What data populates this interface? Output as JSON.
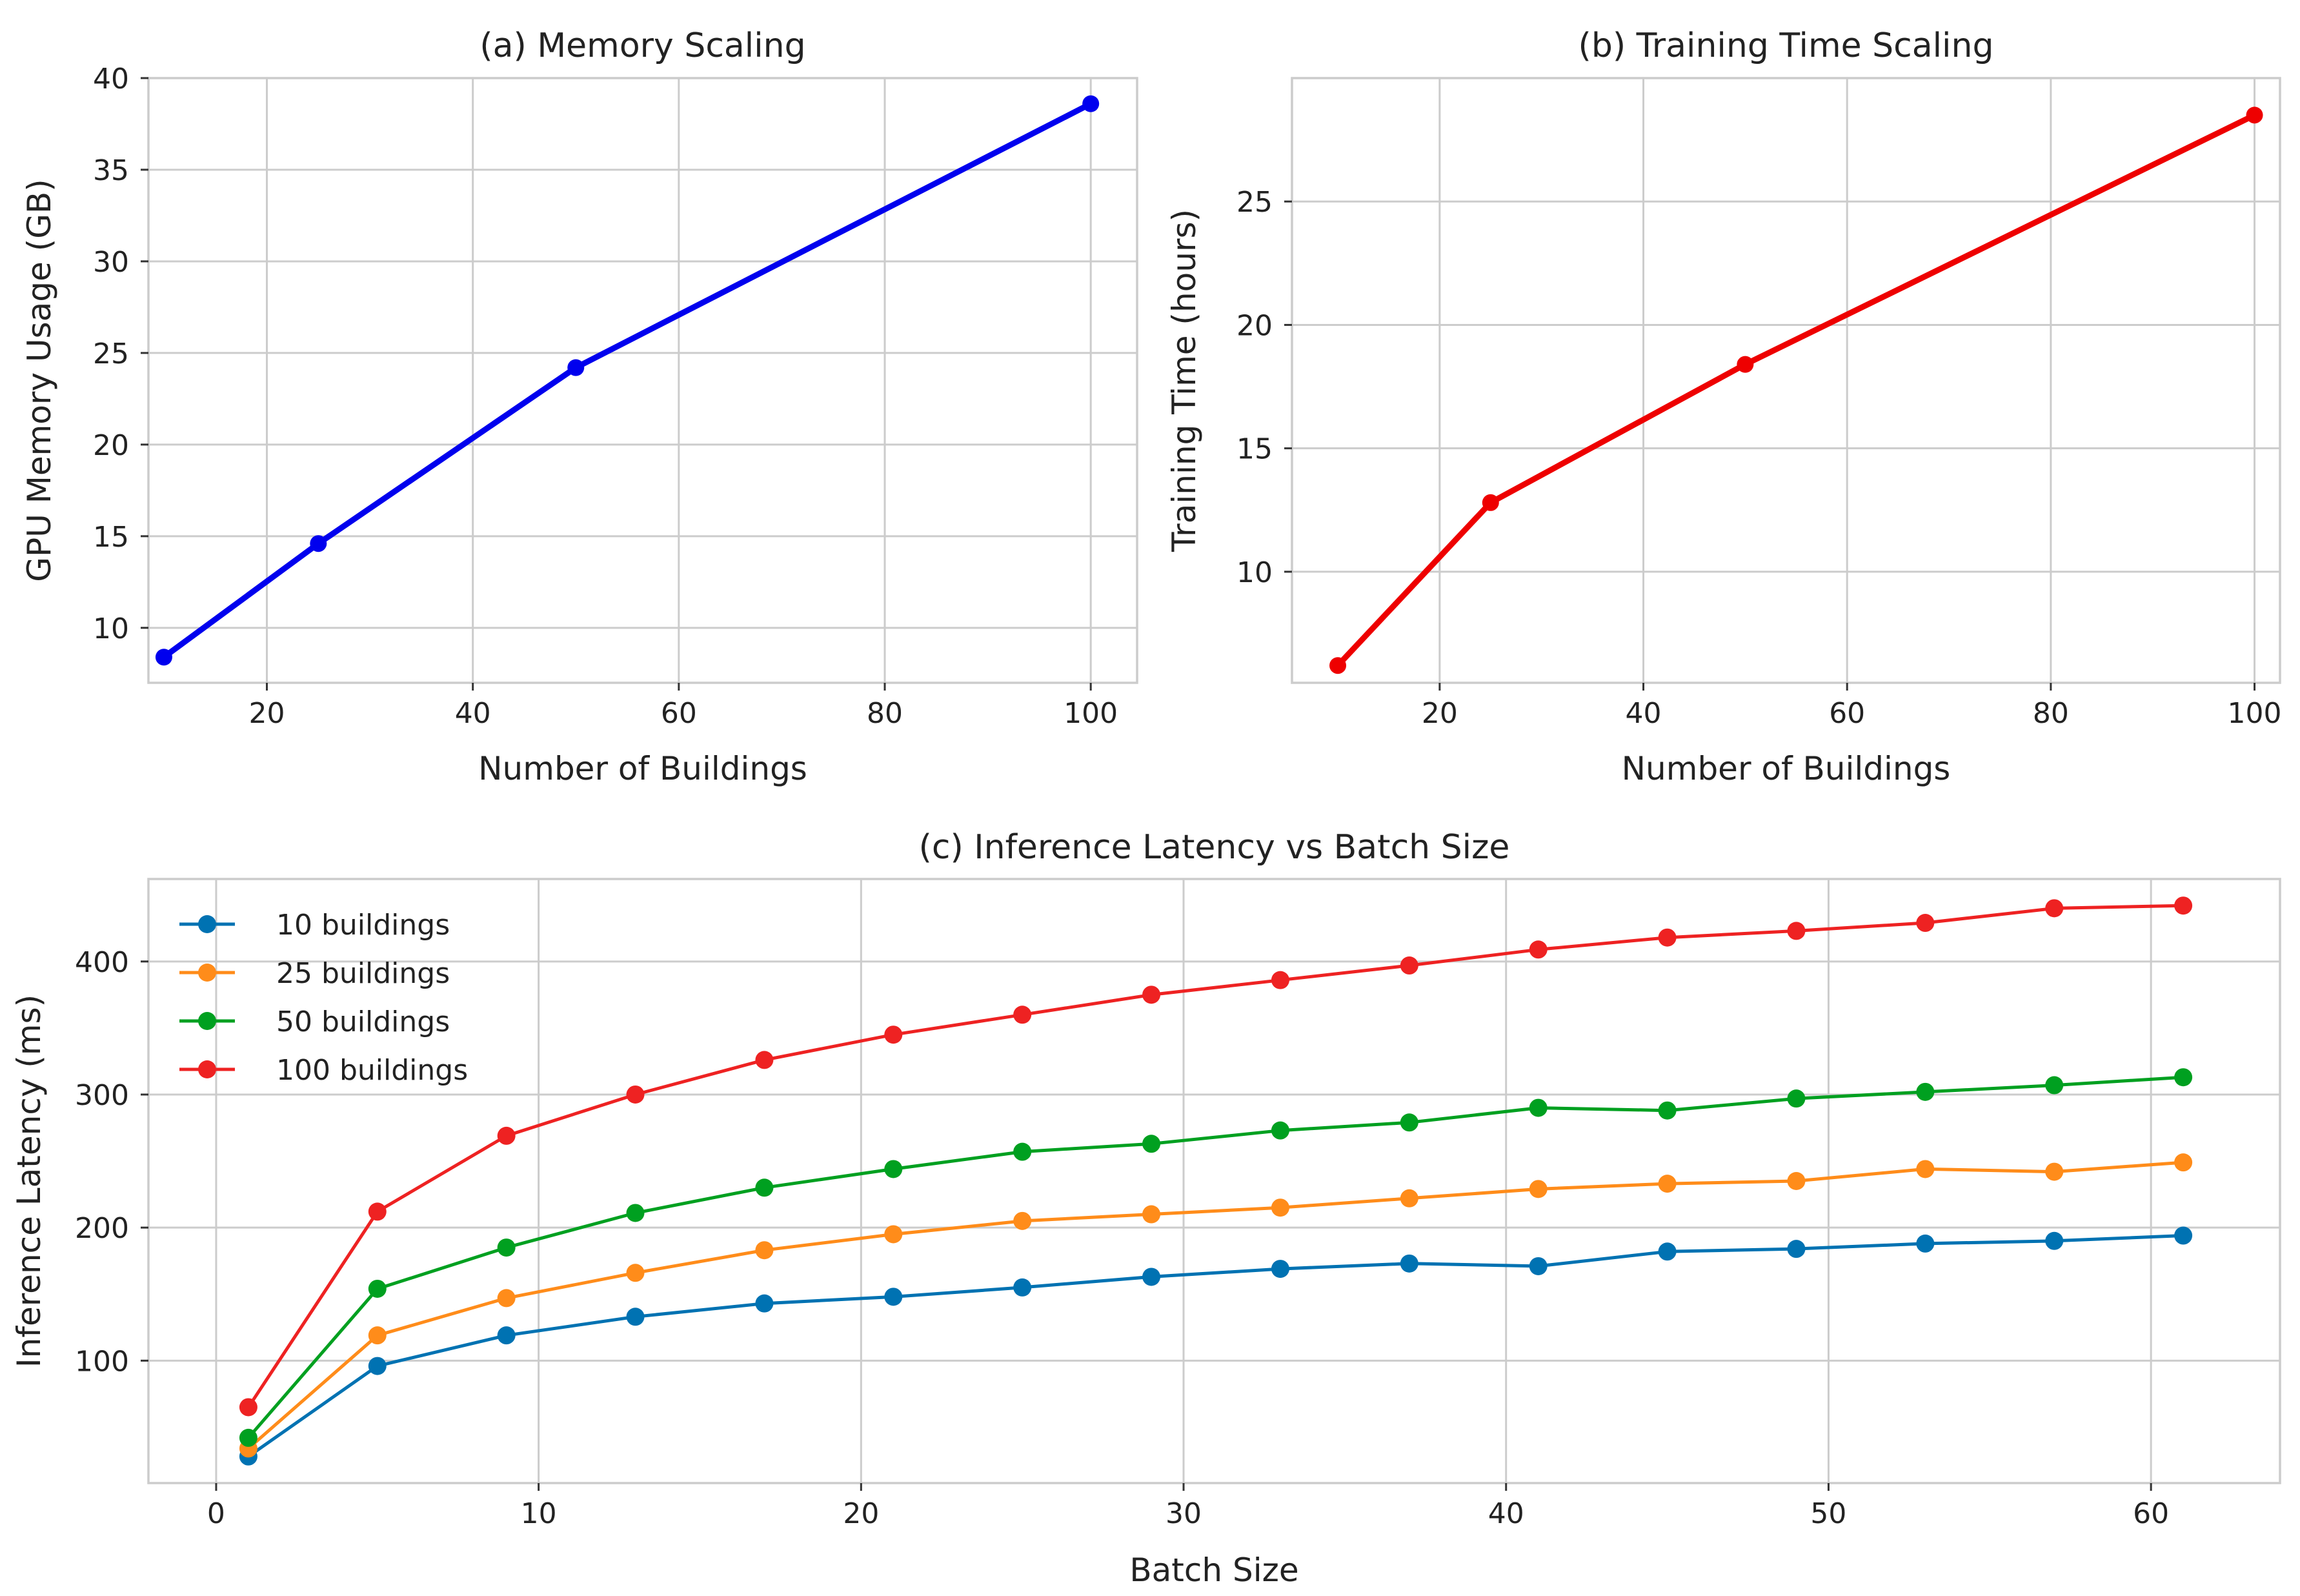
{
  "chart_data": [
    {
      "type": "line",
      "title": "(a) Memory Scaling",
      "xlabel": "Number of Buildings",
      "ylabel": "GPU Memory Usage (GB)",
      "xlim": [
        8.5,
        104.5
      ],
      "ylim": [
        7.0,
        40.0
      ],
      "xticks": [
        20,
        40,
        60,
        80,
        100
      ],
      "yticks": [
        10,
        15,
        20,
        25,
        30,
        35,
        40
      ],
      "grid": true,
      "series": [
        {
          "color": "#0000ee",
          "x": [
            10,
            25,
            50,
            100
          ],
          "y": [
            8.4,
            14.6,
            24.2,
            38.6
          ]
        }
      ]
    },
    {
      "type": "line",
      "title": "(b) Training Time Scaling",
      "xlabel": "Number of Buildings",
      "ylabel": "Training Time (hours)",
      "xlim": [
        5.5,
        102.5
      ],
      "ylim": [
        5.5,
        30.0
      ],
      "xticks": [
        20,
        40,
        60,
        80,
        100
      ],
      "yticks": [
        10,
        15,
        20,
        25
      ],
      "grid": true,
      "series": [
        {
          "color": "#ee0000",
          "x": [
            10,
            25,
            50,
            100
          ],
          "y": [
            6.2,
            12.8,
            18.4,
            28.5
          ]
        }
      ]
    },
    {
      "type": "line",
      "title": "(c) Inference Latency vs Batch Size",
      "xlabel": "Batch Size",
      "ylabel": "Inference Latency (ms)",
      "xlim": [
        -2.1,
        64.0
      ],
      "ylim": [
        8,
        462
      ],
      "xticks": [
        0,
        10,
        20,
        30,
        40,
        50,
        60
      ],
      "yticks": [
        100,
        200,
        300,
        400
      ],
      "grid": true,
      "legend": "top-left",
      "x": [
        1,
        5,
        9,
        13,
        17,
        21,
        25,
        29,
        33,
        37,
        41,
        45,
        49,
        53,
        57,
        61
      ],
      "series": [
        {
          "name": "10 buildings",
          "color": "#0072b2",
          "values": [
            28,
            96,
            119,
            133,
            143,
            148,
            155,
            163,
            169,
            173,
            171,
            182,
            184,
            188,
            190,
            194
          ]
        },
        {
          "name": "25 buildings",
          "color": "#ff8c1a",
          "values": [
            34,
            119,
            147,
            166,
            183,
            195,
            205,
            210,
            215,
            222,
            229,
            233,
            235,
            244,
            242,
            249
          ]
        },
        {
          "name": "50 buildings",
          "color": "#00a020",
          "values": [
            42,
            154,
            185,
            211,
            230,
            244,
            257,
            263,
            273,
            279,
            290,
            288,
            297,
            302,
            307,
            313
          ]
        },
        {
          "name": "100 buildings",
          "color": "#ee2222",
          "values": [
            65,
            212,
            269,
            300,
            326,
            345,
            360,
            375,
            386,
            397,
            409,
            418,
            423,
            429,
            440,
            442
          ]
        }
      ]
    }
  ]
}
